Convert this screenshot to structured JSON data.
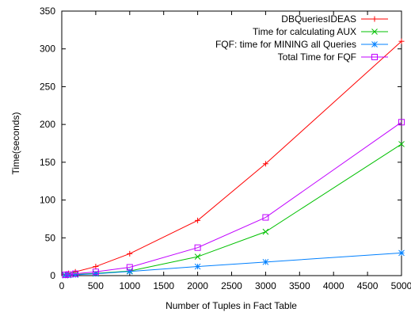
{
  "chart_data": {
    "type": "line",
    "xlabel": "Number of Tuples in Fact Table",
    "ylabel": "Time(seconds)",
    "xlim": [
      0,
      5000
    ],
    "ylim": [
      0,
      350
    ],
    "xticks": [
      0,
      500,
      1000,
      1500,
      2000,
      2500,
      3000,
      3500,
      4000,
      4500,
      5000
    ],
    "yticks": [
      0,
      50,
      100,
      150,
      200,
      250,
      300,
      350
    ],
    "grid": false,
    "legend_position": "top-right",
    "series": [
      {
        "name": "DBQueriesIDEAS",
        "color": "#ff0000",
        "marker": "plus",
        "x": [
          50,
          100,
          200,
          500,
          1000,
          2000,
          3000,
          5000
        ],
        "y": [
          1.5,
          3,
          5,
          12,
          29,
          73,
          148,
          310
        ]
      },
      {
        "name": "Time for calculating AUX",
        "color": "#00c000",
        "marker": "cross",
        "x": [
          50,
          100,
          200,
          500,
          1000,
          2000,
          3000,
          5000
        ],
        "y": [
          0.5,
          0.8,
          1.5,
          3,
          6,
          25,
          58,
          174
        ]
      },
      {
        "name": "FQF: time for MINING all Queries",
        "color": "#0080ff",
        "marker": "star",
        "x": [
          50,
          100,
          200,
          500,
          1000,
          2000,
          3000,
          5000
        ],
        "y": [
          0.3,
          0.5,
          1,
          2.5,
          5.5,
          12,
          18,
          30
        ]
      },
      {
        "name": "Total Time for FQF",
        "color": "#c000ff",
        "marker": "square",
        "x": [
          50,
          100,
          200,
          500,
          1000,
          2000,
          3000,
          5000
        ],
        "y": [
          1,
          1.5,
          2.5,
          5,
          11,
          37,
          77,
          203
        ]
      }
    ]
  }
}
